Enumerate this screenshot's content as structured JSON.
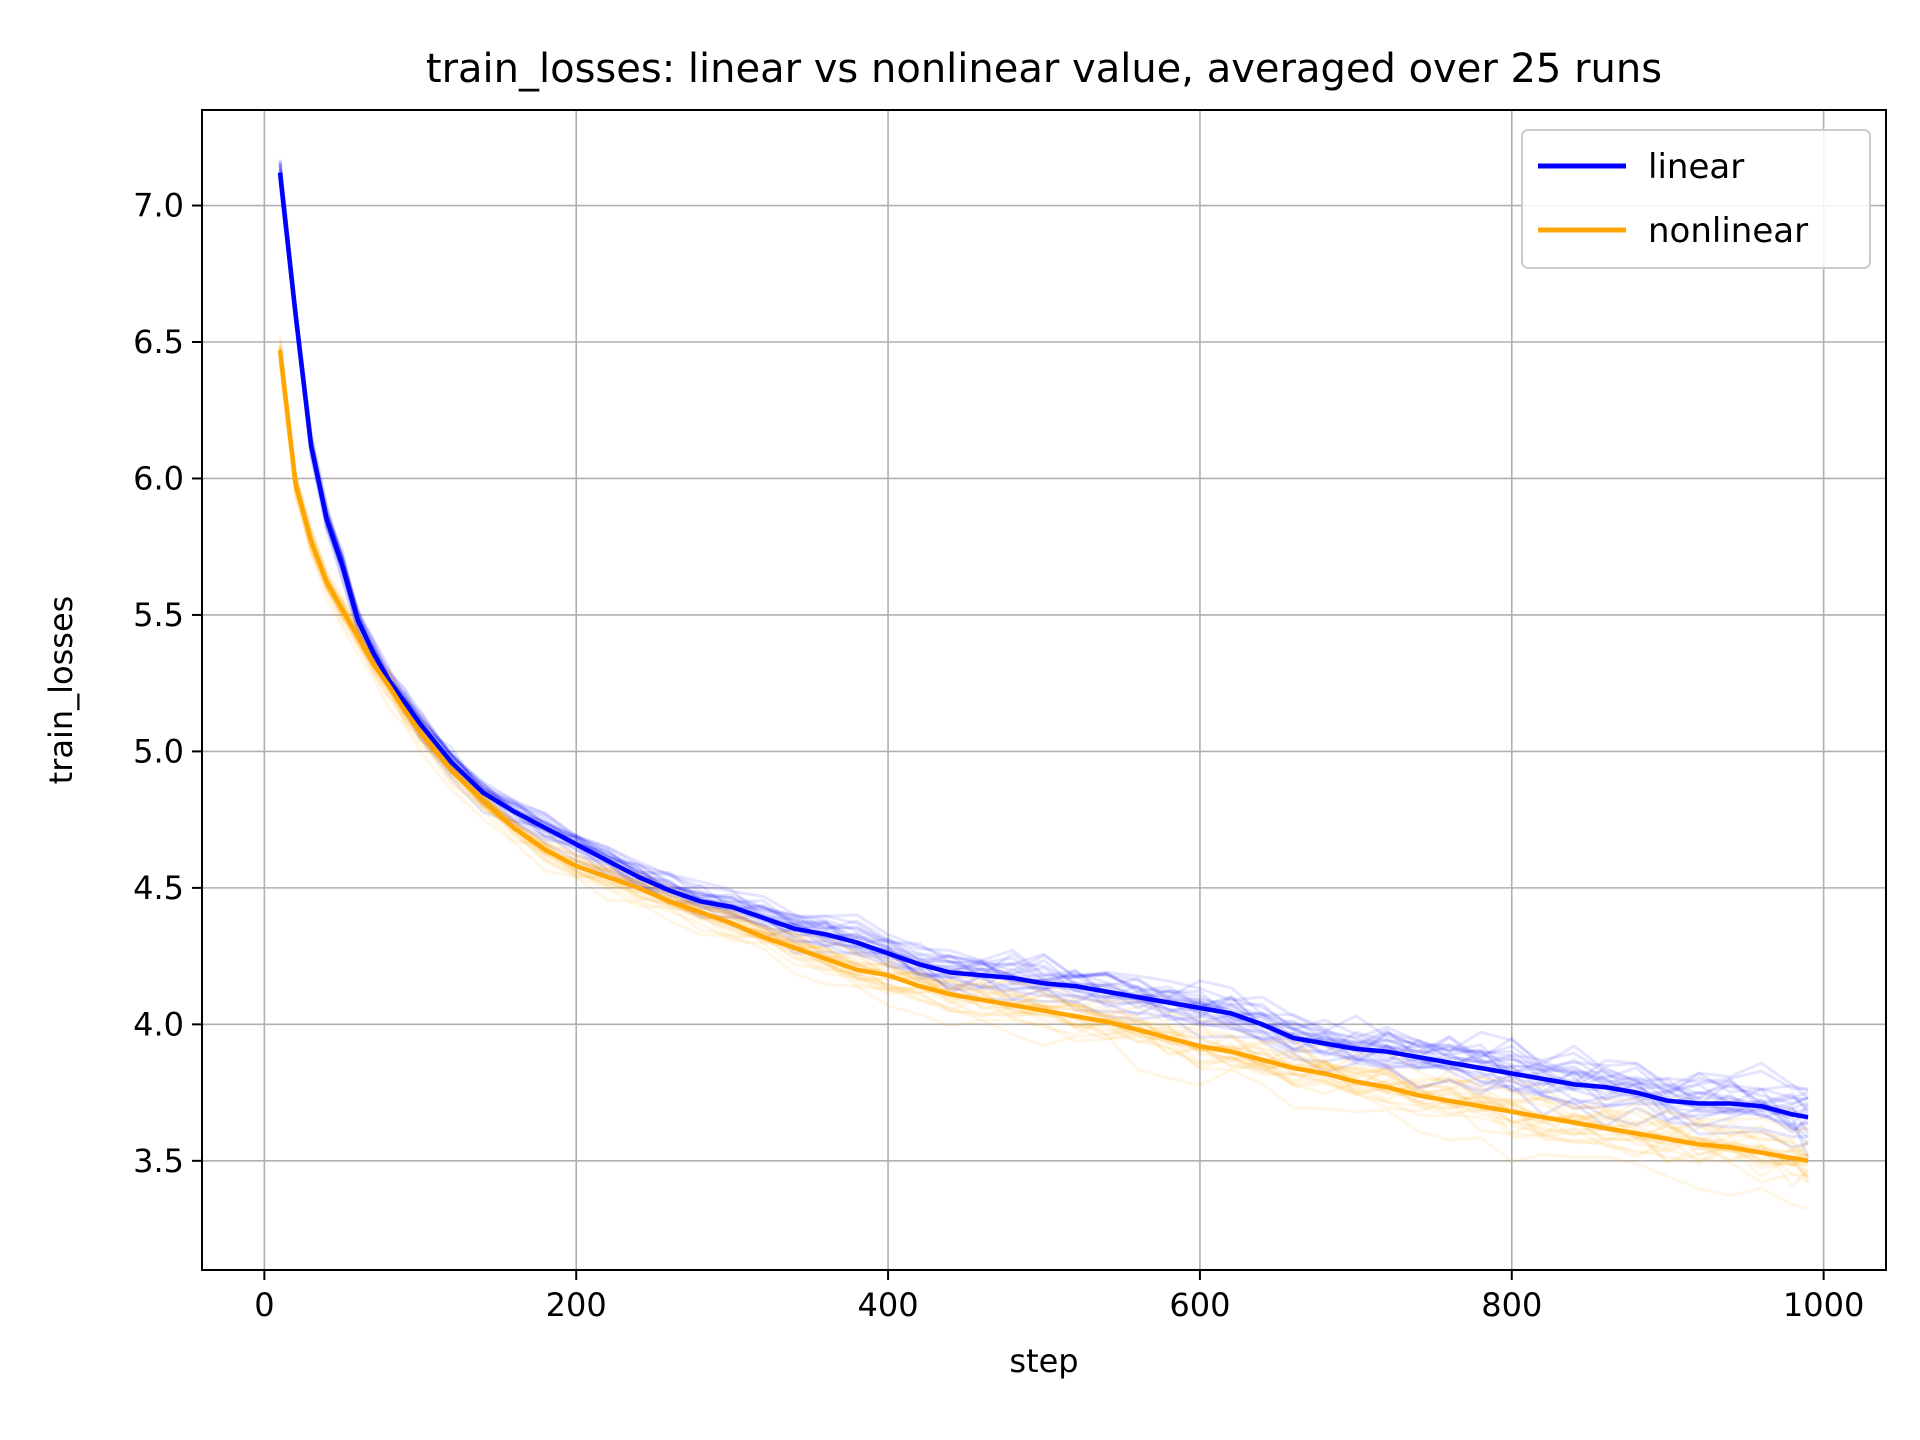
{
  "chart_data": {
    "type": "line",
    "title": "train_losses: linear vs nonlinear value, averaged over 25 runs",
    "xlabel": "step",
    "ylabel": "train_losses",
    "xlim": [
      -40,
      1040
    ],
    "ylim": [
      3.1,
      7.35
    ],
    "xticks": [
      0,
      200,
      400,
      600,
      800,
      1000
    ],
    "yticks": [
      3.5,
      4.0,
      4.5,
      5.0,
      5.5,
      6.0,
      6.5,
      7.0
    ],
    "xtick_labels": [
      "0",
      "200",
      "400",
      "600",
      "800",
      "1000"
    ],
    "ytick_labels": [
      "3.5",
      "4.0",
      "4.5",
      "5.0",
      "5.5",
      "6.0",
      "6.5",
      "7.0"
    ],
    "grid": true,
    "legend": "top-right",
    "n_runs": 25,
    "series": [
      {
        "name": "linear",
        "color": "#0000ff",
        "x": [
          10,
          20,
          30,
          40,
          50,
          60,
          70,
          80,
          90,
          100,
          120,
          140,
          160,
          180,
          200,
          220,
          240,
          260,
          280,
          300,
          320,
          340,
          360,
          380,
          400,
          420,
          440,
          460,
          480,
          500,
          520,
          540,
          560,
          580,
          600,
          620,
          640,
          660,
          680,
          700,
          720,
          740,
          760,
          780,
          800,
          820,
          840,
          860,
          880,
          900,
          920,
          940,
          960,
          980,
          990
        ],
        "values": [
          7.12,
          6.6,
          6.12,
          5.85,
          5.68,
          5.48,
          5.36,
          5.26,
          5.18,
          5.1,
          4.96,
          4.85,
          4.78,
          4.72,
          4.66,
          4.6,
          4.54,
          4.49,
          4.45,
          4.43,
          4.39,
          4.35,
          4.33,
          4.3,
          4.26,
          4.22,
          4.19,
          4.18,
          4.17,
          4.15,
          4.14,
          4.12,
          4.1,
          4.08,
          4.06,
          4.04,
          4.0,
          3.95,
          3.93,
          3.91,
          3.9,
          3.88,
          3.86,
          3.84,
          3.82,
          3.8,
          3.78,
          3.77,
          3.75,
          3.72,
          3.71,
          3.71,
          3.7,
          3.67,
          3.66
        ]
      },
      {
        "name": "nonlinear",
        "color": "#ffa500",
        "x": [
          10,
          20,
          30,
          40,
          50,
          60,
          70,
          80,
          90,
          100,
          120,
          140,
          160,
          180,
          200,
          220,
          240,
          260,
          280,
          300,
          320,
          340,
          360,
          380,
          400,
          420,
          440,
          460,
          480,
          500,
          520,
          540,
          560,
          580,
          600,
          620,
          640,
          660,
          680,
          700,
          720,
          740,
          760,
          780,
          800,
          820,
          840,
          860,
          880,
          900,
          920,
          940,
          960,
          980,
          990
        ],
        "values": [
          6.47,
          5.98,
          5.77,
          5.62,
          5.52,
          5.42,
          5.32,
          5.24,
          5.15,
          5.07,
          4.93,
          4.82,
          4.72,
          4.64,
          4.58,
          4.54,
          4.5,
          4.45,
          4.41,
          4.37,
          4.32,
          4.28,
          4.24,
          4.2,
          4.18,
          4.14,
          4.11,
          4.09,
          4.07,
          4.05,
          4.03,
          4.01,
          3.98,
          3.95,
          3.92,
          3.9,
          3.87,
          3.84,
          3.82,
          3.79,
          3.77,
          3.74,
          3.72,
          3.7,
          3.68,
          3.66,
          3.64,
          3.62,
          3.6,
          3.58,
          3.56,
          3.55,
          3.53,
          3.51,
          3.5
        ]
      }
    ]
  }
}
